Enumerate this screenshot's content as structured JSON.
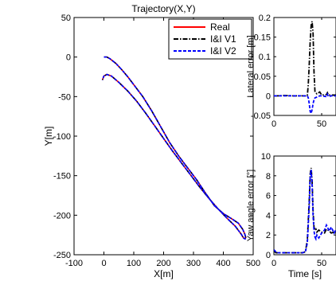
{
  "chart_data": [
    {
      "type": "line",
      "title": "Trajectory(X,Y)",
      "xlabel": "X[m]",
      "ylabel": "Y[m]",
      "xlim": [
        -100,
        500
      ],
      "ylim": [
        -250,
        50
      ],
      "xticks": [
        "-100",
        "0",
        "100",
        "200",
        "300",
        "400",
        "500"
      ],
      "yticks": [
        "50",
        "0",
        "-50",
        "-100",
        "-150",
        "-200",
        "-250"
      ],
      "legend": {
        "placement": "top-right",
        "entries": [
          "Real",
          "I&I V1",
          "I&I V2"
        ]
      },
      "series": [
        {
          "name": "Real",
          "color": "#ff0000",
          "style": "solid",
          "x": [
            0,
            10,
            20,
            40,
            60,
            80,
            100,
            130,
            160,
            190,
            220,
            250,
            280,
            310,
            340,
            370,
            400,
            430,
            450,
            465,
            472,
            475,
            473,
            468,
            460,
            440,
            410,
            380,
            350,
            320,
            290,
            260,
            230,
            200,
            170,
            140,
            110,
            80,
            50,
            25,
            10,
            0,
            -5
          ],
          "y": [
            0,
            0,
            -2,
            -8,
            -16,
            -25,
            -35,
            -50,
            -68,
            -88,
            -108,
            -125,
            -140,
            -155,
            -172,
            -188,
            -198,
            -205,
            -210,
            -218,
            -224,
            -228,
            -230,
            -229,
            -224,
            -214,
            -203,
            -191,
            -178,
            -164,
            -149,
            -134,
            -119,
            -103,
            -87,
            -71,
            -56,
            -43,
            -32,
            -24,
            -22,
            -24,
            -29
          ]
        },
        {
          "name": "I&I V1",
          "color": "#000000",
          "style": "dashdot",
          "x": [
            0,
            10,
            20,
            40,
            60,
            80,
            100,
            130,
            160,
            190,
            220,
            250,
            280,
            310,
            340,
            370,
            400,
            430,
            450,
            465,
            472,
            475,
            473,
            468,
            460,
            440,
            410,
            380,
            350,
            320,
            290,
            260,
            230,
            200,
            170,
            140,
            110,
            80,
            50,
            25,
            10,
            0,
            -5
          ],
          "y": [
            0,
            0,
            -2,
            -8,
            -16,
            -25,
            -35,
            -50,
            -68,
            -88,
            -108,
            -125,
            -140,
            -155,
            -172,
            -188,
            -198,
            -205,
            -210,
            -218,
            -224,
            -228,
            -230,
            -229,
            -224,
            -214,
            -203,
            -191,
            -178,
            -164,
            -149,
            -134,
            -119,
            -103,
            -87,
            -71,
            -56,
            -43,
            -32,
            -24,
            -22,
            -24,
            -29
          ]
        },
        {
          "name": "I&I V2",
          "color": "#0000ff",
          "style": "dashed",
          "x": [
            0,
            10,
            20,
            40,
            60,
            80,
            100,
            130,
            160,
            190,
            220,
            250,
            280,
            310,
            340,
            370,
            400,
            430,
            450,
            465,
            472,
            475,
            473,
            468,
            460,
            440,
            410,
            380,
            350,
            320,
            290,
            260,
            230,
            200,
            170,
            140,
            110,
            80,
            50,
            25,
            10,
            0,
            -5
          ],
          "y": [
            0,
            0,
            -2,
            -8,
            -16,
            -25,
            -35,
            -50,
            -68,
            -88,
            -108,
            -125,
            -140,
            -155,
            -172,
            -188,
            -198,
            -205,
            -210,
            -218,
            -224,
            -228,
            -230,
            -229,
            -224,
            -214,
            -203,
            -191,
            -178,
            -164,
            -149,
            -134,
            -119,
            -103,
            -87,
            -71,
            -56,
            -43,
            -32,
            -24,
            -22,
            -24,
            -29
          ]
        }
      ]
    },
    {
      "type": "line",
      "title": "",
      "xlabel": "",
      "ylabel": "Lateral error [m]",
      "xlim": [
        0,
        65
      ],
      "ylim": [
        -0.05,
        0.2
      ],
      "xticks": [
        "0",
        "50"
      ],
      "yticks": [
        "0.2",
        "0.15",
        "0.1",
        "0.05",
        "0",
        "-0.05"
      ],
      "series": [
        {
          "name": "I&I V1",
          "color": "#000000",
          "style": "dashdot",
          "x": [
            0,
            5,
            10,
            20,
            30,
            35,
            36,
            37,
            38,
            39,
            40,
            41,
            42,
            43,
            45,
            48,
            50,
            55,
            56,
            57,
            60,
            65
          ],
          "y": [
            0,
            0,
            0.001,
            0,
            0,
            0,
            0.03,
            0.08,
            0.14,
            0.18,
            0.19,
            0.16,
            0.06,
            0.01,
            0.005,
            0.01,
            0.002,
            0.003,
            0.008,
            0.002,
            0.002,
            0.002
          ]
        },
        {
          "name": "I&I V2",
          "color": "#0000ff",
          "style": "dashed",
          "x": [
            0,
            5,
            10,
            20,
            30,
            35,
            36,
            37,
            38,
            39,
            40,
            41,
            42,
            43,
            45,
            48,
            50,
            55,
            56,
            57,
            60,
            65
          ],
          "y": [
            0,
            0,
            0,
            0,
            0,
            0,
            -0.005,
            -0.02,
            -0.04,
            -0.045,
            -0.035,
            -0.02,
            -0.01,
            -0.005,
            -0.003,
            0,
            0,
            -0.002,
            0.004,
            -0.002,
            0,
            0
          ]
        }
      ]
    },
    {
      "type": "line",
      "title": "",
      "xlabel": "Time [s]",
      "ylabel": "Yaw angle error [°]",
      "xlim": [
        0,
        65
      ],
      "ylim": [
        0,
        10
      ],
      "xticks": [
        "0",
        "50"
      ],
      "yticks": [
        "10",
        "8",
        "6",
        "4",
        "2",
        "0"
      ],
      "series": [
        {
          "name": "I&I V1",
          "color": "#000000",
          "style": "dashdot",
          "x": [
            0,
            1,
            2,
            3,
            10,
            20,
            30,
            33,
            35,
            37,
            38,
            39,
            40,
            41,
            42,
            43,
            44,
            45,
            47,
            50,
            53,
            55,
            58,
            60,
            63,
            65
          ],
          "y": [
            0.4,
            0.3,
            0.2,
            0.2,
            0.2,
            0.2,
            0.2,
            0.3,
            1.5,
            5.5,
            8.2,
            8.8,
            7.5,
            4.5,
            2.8,
            2.5,
            2.6,
            2.3,
            2.5,
            2.3,
            2.2,
            2.6,
            2.4,
            2.2,
            2.3,
            2.2
          ]
        },
        {
          "name": "I&I V2",
          "color": "#0000ff",
          "style": "dashed",
          "x": [
            0,
            1,
            2,
            3,
            10,
            20,
            30,
            33,
            35,
            37,
            38,
            39,
            40,
            41,
            42,
            43,
            44,
            45,
            47,
            50,
            53,
            55,
            58,
            60,
            63,
            65
          ],
          "y": [
            0.5,
            0.4,
            0.3,
            0.2,
            0.2,
            0.2,
            0.2,
            0.3,
            1.2,
            5.0,
            8.0,
            8.6,
            7.0,
            4.0,
            2.4,
            1.8,
            1.6,
            2.0,
            1.7,
            2.2,
            2.5,
            3.0,
            2.4,
            2.8,
            2.2,
            2.6
          ]
        }
      ]
    }
  ]
}
